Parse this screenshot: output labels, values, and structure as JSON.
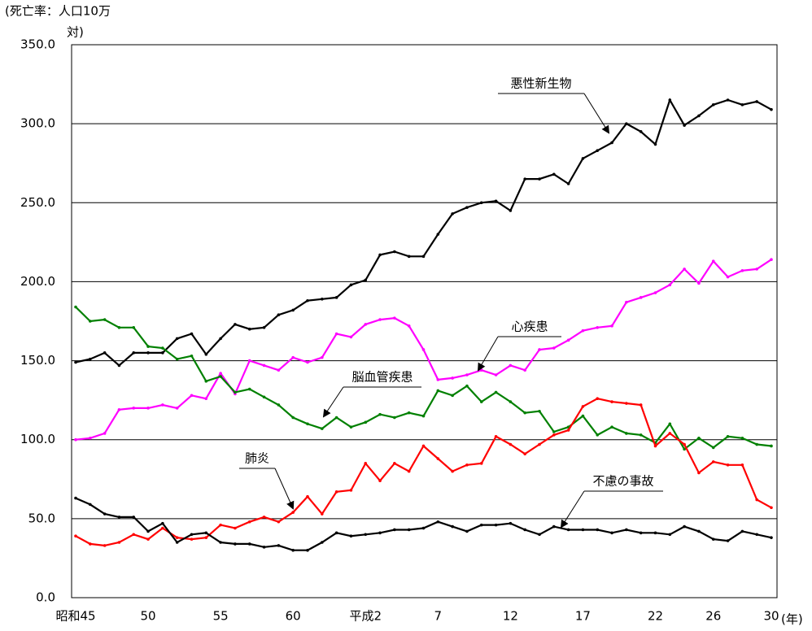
{
  "chart_data": {
    "type": "line",
    "ylabel_lines": [
      "(死亡率：人口10万",
      "対)"
    ],
    "xlabel": "(年)",
    "categories": [
      "昭和45",
      null,
      null,
      null,
      null,
      "50",
      null,
      null,
      null,
      null,
      "55",
      null,
      null,
      null,
      null,
      "60",
      null,
      null,
      null,
      null,
      "平成2",
      null,
      null,
      null,
      null,
      "7",
      null,
      null,
      null,
      null,
      "12",
      null,
      null,
      null,
      null,
      "17",
      null,
      null,
      null,
      null,
      "22",
      null,
      null,
      null,
      "26",
      null,
      null,
      null,
      "30"
    ],
    "ylim": [
      0,
      350
    ],
    "yticks": [
      {
        "value": 0,
        "label": "0.0"
      },
      {
        "value": 50,
        "label": "50.0"
      },
      {
        "value": 100,
        "label": "100.0"
      },
      {
        "value": 150,
        "label": "150.0"
      },
      {
        "value": 200,
        "label": "200.0"
      },
      {
        "value": 250,
        "label": "250.0"
      },
      {
        "value": 300,
        "label": "300.0"
      },
      {
        "value": 350,
        "label": "350.0"
      }
    ],
    "grid": true,
    "series": [
      {
        "name": "悪性新生物",
        "color": "#000000",
        "values": [
          149,
          151,
          155,
          147,
          155,
          155,
          155,
          164,
          167,
          154,
          164,
          173,
          170,
          171,
          179,
          182,
          188,
          189,
          190,
          198,
          201,
          217,
          219,
          216,
          216,
          230,
          243,
          247,
          250,
          251,
          245,
          265,
          265,
          268,
          262,
          278,
          283,
          288,
          300,
          295,
          287,
          315,
          299,
          305,
          312,
          315,
          312,
          314,
          309
        ]
      },
      {
        "name": "心疾患",
        "color": "#ff00ff",
        "values": [
          100,
          101,
          104,
          119,
          120,
          120,
          122,
          120,
          128,
          126,
          142,
          129,
          150,
          147,
          144,
          152,
          149,
          152,
          167,
          165,
          173,
          176,
          177,
          172,
          157,
          138,
          139,
          141,
          144,
          141,
          147,
          144,
          157,
          158,
          163,
          169,
          171,
          172,
          187,
          190,
          193,
          198,
          208,
          199,
          213,
          203,
          207,
          208,
          214
        ]
      },
      {
        "name": "脳血管疾患",
        "color": "#008000",
        "values": [
          184,
          175,
          176,
          171,
          171,
          159,
          158,
          151,
          153,
          137,
          140,
          130,
          132,
          127,
          122,
          114,
          110,
          107,
          114,
          108,
          111,
          116,
          114,
          117,
          115,
          131,
          128,
          134,
          124,
          130,
          124,
          117,
          118,
          105,
          108,
          115,
          103,
          108,
          104,
          103,
          98,
          110,
          94,
          101,
          95,
          102,
          101,
          97,
          96
        ]
      },
      {
        "name": "肺炎",
        "color": "#ff0000",
        "values": [
          39,
          34,
          33,
          35,
          40,
          37,
          44,
          38,
          37,
          38,
          46,
          44,
          48,
          51,
          48,
          54,
          64,
          53,
          67,
          68,
          85,
          74,
          85,
          80,
          96,
          88,
          80,
          84,
          85,
          102,
          97,
          91,
          97,
          103,
          106,
          121,
          126,
          124,
          123,
          122,
          96,
          104,
          97,
          79,
          86,
          84,
          84,
          62,
          57
        ]
      },
      {
        "name": "不慮の事故",
        "color": "#000000",
        "values": [
          63,
          59,
          53,
          51,
          51,
          42,
          47,
          35,
          40,
          41,
          35,
          34,
          34,
          32,
          33,
          30,
          30,
          35,
          41,
          39,
          40,
          41,
          43,
          43,
          44,
          48,
          45,
          42,
          46,
          46,
          47,
          43,
          40,
          45,
          43,
          43,
          43,
          41,
          43,
          41,
          41,
          40,
          45,
          42,
          37,
          36,
          42,
          40,
          38
        ]
      }
    ]
  }
}
